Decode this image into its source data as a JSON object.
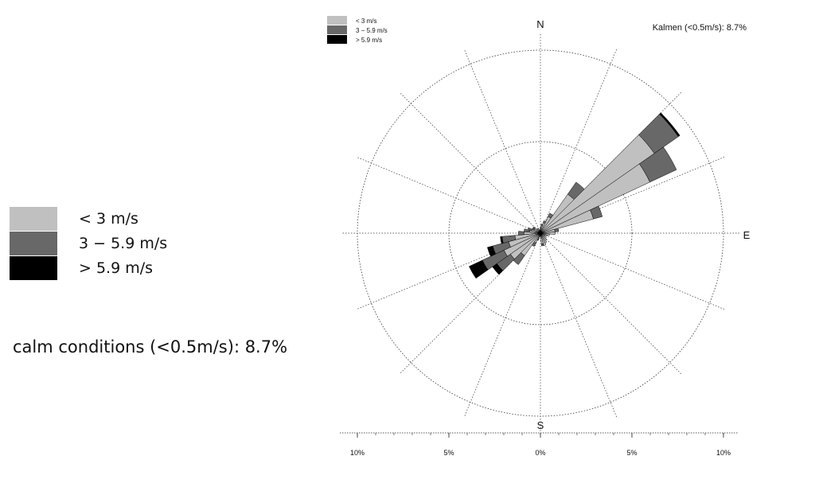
{
  "legend": {
    "items": [
      {
        "label": "< 3 m/s",
        "color": "#c0c0c0"
      },
      {
        "label": "3 − 5.9 m/s",
        "color": "#686868"
      },
      {
        "label": "> 5.9 m/s",
        "color": "#000000"
      }
    ]
  },
  "calm_note": "calm conditions (<0.5m/s): 8.7%",
  "chart_data": {
    "type": "wind-rose",
    "title": "",
    "calm_label": "Kalmen (<0.5m/s): 8.7%",
    "calm_percent": 8.7,
    "directions_deg": [
      0,
      10,
      20,
      30,
      40,
      50,
      60,
      70,
      80,
      90,
      100,
      110,
      120,
      130,
      140,
      150,
      160,
      170,
      180,
      190,
      200,
      210,
      220,
      230,
      240,
      250,
      260,
      270,
      280,
      290,
      300,
      310,
      320,
      330,
      340,
      350
    ],
    "series": [
      {
        "name": "< 3 m/s",
        "color": "#c0c0c0",
        "values": [
          0.3,
          0.4,
          0.6,
          1.0,
          2.6,
          7.6,
          6.6,
          3.0,
          0.8,
          0.8,
          0.5,
          0.4,
          0.3,
          0.4,
          0.5,
          0.6,
          0.7,
          0.6,
          0.2,
          0.2,
          0.3,
          0.6,
          1.5,
          2.0,
          2.2,
          1.8,
          1.4,
          0.9,
          0.6,
          0.5,
          0.4,
          0.4,
          0.3,
          0.3,
          0.2,
          0.2
        ]
      },
      {
        "name": "3 − 5.9 m/s",
        "color": "#686868",
        "values": [
          0,
          0.1,
          0.1,
          0.2,
          0.8,
          1.6,
          1.6,
          0.5,
          0.2,
          0,
          0,
          0,
          0,
          0,
          0,
          0,
          0,
          0.1,
          0,
          0,
          0.1,
          0.2,
          0.6,
          0.9,
          1.3,
          0.9,
          0.7,
          0.3,
          0.3,
          0.2,
          0.1,
          0.1,
          0,
          0,
          0,
          0
        ]
      },
      {
        "name": "> 5.9 m/s",
        "color": "#000000",
        "values": [
          0,
          0,
          0,
          0,
          0,
          0.1,
          0,
          0,
          0,
          0,
          0,
          0,
          0,
          0,
          0,
          0,
          0,
          0,
          0,
          0,
          0,
          0,
          0,
          0.3,
          0.8,
          0.3,
          0.1,
          0,
          0,
          0,
          0,
          0,
          0,
          0,
          0,
          0
        ]
      }
    ],
    "compass_labels": [
      "N",
      "E",
      "S"
    ],
    "rings_percent": [
      5,
      10
    ],
    "radius_max_percent": 10,
    "x_axis": {
      "ticks": [
        -10,
        -5,
        0,
        5,
        10
      ],
      "tick_labels": [
        "10%",
        "5%",
        "0%",
        "5%",
        "10%"
      ]
    }
  }
}
